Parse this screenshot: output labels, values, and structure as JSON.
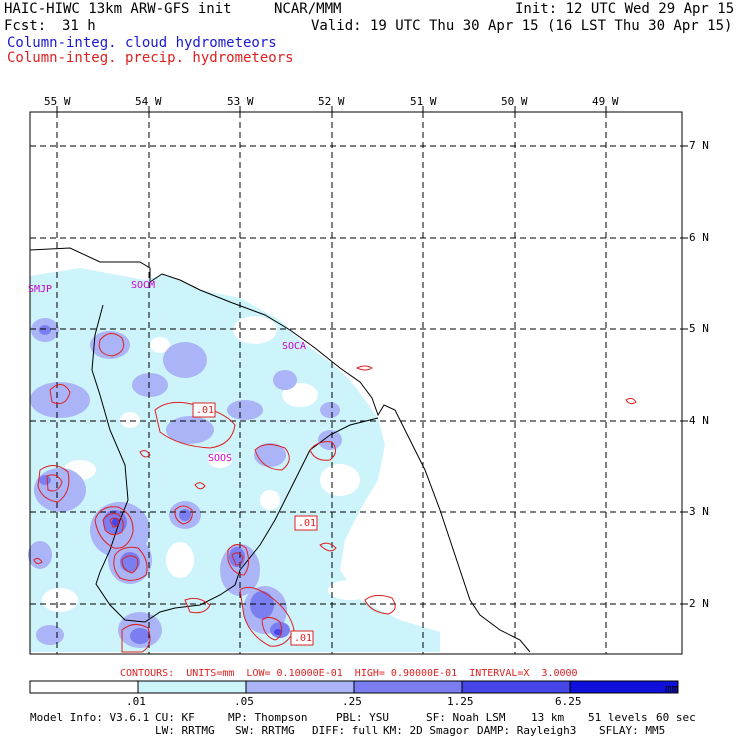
{
  "header": {
    "model": "HAIC-HIWC 13km ARW-GFS init",
    "org": "NCAR/MMM",
    "init": "Init: 12 UTC Wed 29 Apr 15",
    "fcst_label": "Fcst:",
    "fcst_value": "31 h",
    "valid": "Valid: 19 UTC Thu 30 Apr 15 (16 LST Thu 30 Apr 15)",
    "legend_cloud": "Column-integ. cloud hydrometeors",
    "legend_precip": "Column-integ. precip. hydrometeors"
  },
  "colors": {
    "cloud_text": "#1a1acc",
    "precip_text": "#dd2020",
    "station_text": "#cc00cc",
    "contour_text": "#dd2020",
    "shade": [
      "#ffffff",
      "#cdf3fb",
      "#aab4f6",
      "#7a7ef0",
      "#4646e8",
      "#1010dd"
    ]
  },
  "map": {
    "lon_labels": [
      "55 W",
      "54 W",
      "53 W",
      "52 W",
      "51 W",
      "50 W",
      "49 W"
    ],
    "lat_labels": [
      "7 N",
      "6 N",
      "5 N",
      "4 N",
      "3 N",
      "2 N"
    ],
    "stations": [
      "SMJP",
      "SOCM",
      "SOCA",
      "SOOS"
    ],
    "contour_labels": [
      ".01",
      ".01",
      ".01"
    ]
  },
  "contour_info": "CONTOURS:  UNITS=mm  LOW= 0.10000E-01  HIGH= 0.90000E-01  INTERVAL=X  3.0000",
  "colorbar": {
    "ticks": [
      ".01",
      ".05",
      ".25",
      "1.25",
      "6.25"
    ],
    "units": "mm"
  },
  "footer": {
    "line1": [
      "Model Info: V3.6.1",
      "CU: KF",
      "MP: Thompson",
      "PBL: YSU",
      "SF: Noah LSM",
      "13 km",
      "51 levels",
      "60 sec"
    ],
    "line2": [
      "LW: RRTMG",
      "SW: RRTMG",
      "DIFF: full",
      "KM: 2D Smagor",
      "DAMP: Rayleigh3",
      "SFLAY: MM5"
    ]
  }
}
